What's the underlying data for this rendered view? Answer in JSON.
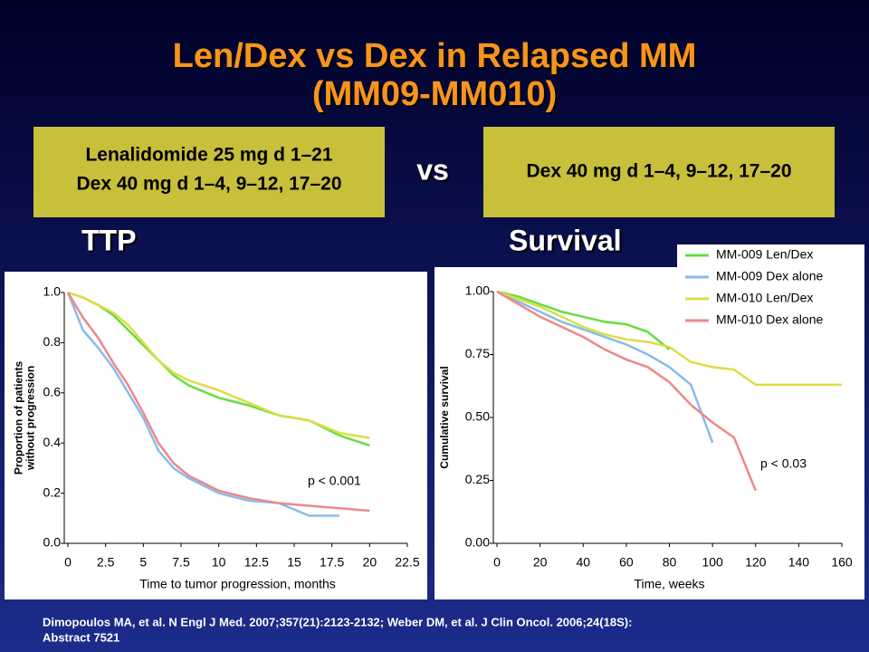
{
  "title": [
    "Len/Dex vs Dex in Relapsed MM",
    "(MM09-MM010)"
  ],
  "arms": {
    "left": [
      "Lenalidomide 25 mg d 1–21",
      "Dex 40 mg d 1–4, 9–12, 17–20"
    ],
    "vs": "vs",
    "right": "Dex 40 mg d 1–4, 9–12, 17–20"
  },
  "chart_data": [
    {
      "type": "line",
      "title": "TTP",
      "x_label": "Time to tumor progression, months",
      "y_label": [
        "Proportion of patients",
        "without progression"
      ],
      "annotation": "p < 0.001",
      "x": [
        0,
        1,
        2,
        3,
        4,
        5,
        6,
        7,
        8,
        10,
        12,
        14,
        16,
        18,
        20
      ],
      "xlim": [
        0,
        22.5
      ],
      "xticks": [
        0,
        2.5,
        5,
        7.5,
        10,
        12.5,
        15,
        17.5,
        20,
        22.5
      ],
      "ylim": [
        0,
        1
      ],
      "yticks": [
        {
          "value": 0,
          "label": "0.0"
        },
        0.2,
        0.4,
        0.6,
        0.8,
        {
          "value": 1,
          "label": "1.0"
        }
      ],
      "series": [
        {
          "color": "#66dd44",
          "values": [
            1,
            0.98,
            0.95,
            0.91,
            0.85,
            0.79,
            0.73,
            0.67,
            0.63,
            0.58,
            0.55,
            0.51,
            0.49,
            0.43,
            0.39
          ]
        },
        {
          "color": "#88bbee",
          "values": [
            1,
            0.85,
            0.78,
            0.7,
            0.6,
            0.5,
            0.37,
            0.3,
            0.26,
            0.2,
            0.17,
            0.16,
            0.11,
            0.11,
            null
          ]
        },
        {
          "color": "#dddd44",
          "values": [
            1,
            0.98,
            0.95,
            0.92,
            0.87,
            0.8,
            0.73,
            0.68,
            0.65,
            0.61,
            0.56,
            0.51,
            0.49,
            0.44,
            0.42
          ]
        },
        {
          "color": "#ee8888",
          "values": [
            1,
            0.9,
            0.82,
            0.72,
            0.63,
            0.52,
            0.4,
            0.32,
            0.27,
            0.21,
            0.18,
            0.16,
            0.15,
            0.14,
            0.13
          ]
        }
      ]
    },
    {
      "type": "line",
      "title": "Survival",
      "x_label": "Time, weeks",
      "y_label": [
        "Cumulative survival"
      ],
      "annotation": "p < 0.03",
      "x": [
        0,
        10,
        20,
        30,
        40,
        50,
        60,
        70,
        80,
        90,
        100,
        110,
        120,
        130,
        140,
        150,
        160
      ],
      "xlim": [
        0,
        160
      ],
      "xticks": [
        0,
        20,
        40,
        60,
        80,
        100,
        120,
        140,
        160
      ],
      "ylim": [
        0,
        1
      ],
      "yticks": [
        {
          "value": 0,
          "label": "0.00"
        },
        {
          "value": 0.25,
          "label": "0.25"
        },
        {
          "value": 0.5,
          "label": "0.50"
        },
        {
          "value": 0.75,
          "label": "0.75"
        },
        {
          "value": 1,
          "label": "1.00"
        }
      ],
      "series": [
        {
          "name": "MM-009 Len/Dex",
          "color": "#66dd44",
          "values": [
            1,
            0.98,
            0.95,
            0.92,
            0.9,
            0.88,
            0.87,
            0.84,
            0.77,
            null,
            null,
            null,
            null,
            null,
            null,
            null,
            null
          ]
        },
        {
          "name": "MM-009 Dex alone",
          "color": "#88bbee",
          "values": [
            1,
            0.96,
            0.92,
            0.88,
            0.85,
            0.82,
            0.79,
            0.75,
            0.7,
            0.63,
            0.4,
            null,
            null,
            null,
            null,
            null,
            null
          ]
        },
        {
          "name": "MM-010 Len/Dex",
          "color": "#dddd44",
          "values": [
            1,
            0.97,
            0.94,
            0.9,
            0.86,
            0.83,
            0.81,
            0.8,
            0.78,
            0.72,
            0.7,
            0.69,
            0.63,
            0.63,
            0.63,
            0.63,
            0.63
          ]
        },
        {
          "name": "MM-010 Dex alone",
          "color": "#ee8888",
          "values": [
            1,
            0.95,
            0.9,
            0.86,
            0.82,
            0.77,
            0.73,
            0.7,
            0.64,
            0.55,
            0.48,
            0.42,
            0.21,
            null,
            null,
            null,
            null
          ]
        }
      ]
    }
  ],
  "footnote": [
    "Dimopoulos MA, et al. N Engl J Med. 2007;357(21):2123-2132; Weber DM, et al. J Clin Oncol. 2006;24(18S):",
    "Abstract 7521"
  ]
}
